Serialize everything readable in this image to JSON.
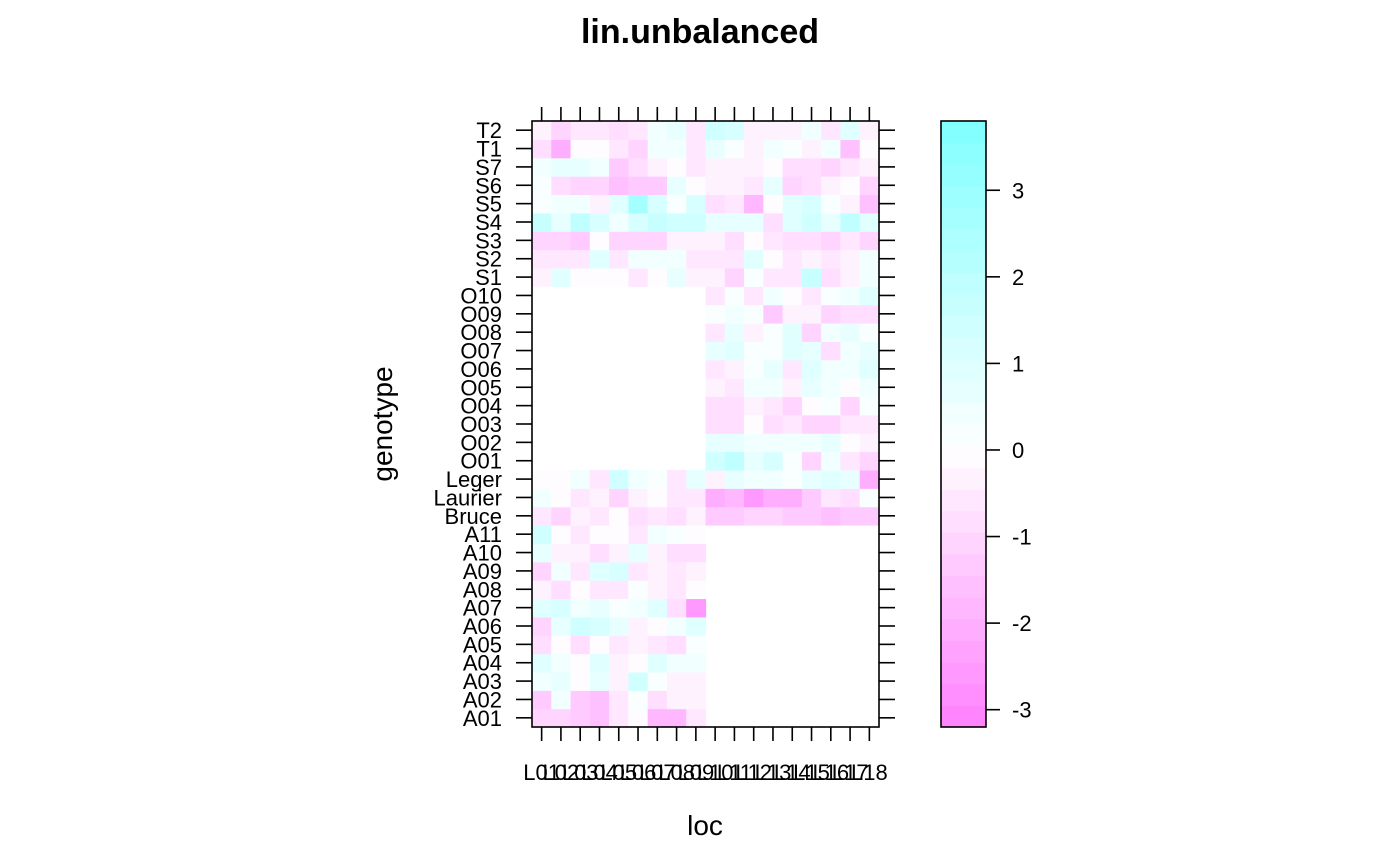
{
  "chart_data": {
    "type": "heatmap",
    "title": "lin.unbalanced",
    "xlabel": "loc",
    "ylabel": "genotype",
    "x_categories": [
      "L01",
      "L02",
      "L03",
      "L04",
      "L05",
      "L06",
      "L07",
      "L08",
      "L09",
      "L10",
      "L11",
      "L12",
      "L13",
      "L14",
      "L15",
      "L16",
      "L17",
      "L18"
    ],
    "y_categories": [
      "A01",
      "A02",
      "A03",
      "A04",
      "A05",
      "A06",
      "A07",
      "A08",
      "A09",
      "A10",
      "A11",
      "Bruce",
      "Laurier",
      "Leger",
      "O01",
      "O02",
      "O03",
      "O04",
      "O05",
      "O06",
      "O07",
      "O08",
      "O09",
      "O10",
      "S1",
      "S2",
      "S3",
      "S4",
      "S5",
      "S6",
      "S7",
      "T1",
      "T2"
    ],
    "colorbar": {
      "range": [
        -3.2,
        3.8
      ],
      "ticks": [
        -3,
        -2,
        -1,
        0,
        1,
        2,
        3
      ],
      "low_color": "#ff80ff",
      "mid_color": "#ffffff",
      "high_color": "#80ffff",
      "steps": 28
    },
    "values": [
      [
        -1.2,
        -1.0,
        -1.3,
        -1.6,
        -0.5,
        -0.1,
        -1.9,
        -1.9,
        -0.6,
        null,
        null,
        null,
        null,
        null,
        null,
        null,
        null,
        null
      ],
      [
        -1.3,
        0.4,
        -1.4,
        -1.7,
        -0.6,
        0.2,
        -0.9,
        -0.3,
        -0.3,
        null,
        null,
        null,
        null,
        null,
        null,
        null,
        null,
        null
      ],
      [
        0.5,
        0.6,
        -0.2,
        0.7,
        -0.3,
        1.4,
        0.2,
        -0.3,
        -0.3,
        null,
        null,
        null,
        null,
        null,
        null,
        null,
        null,
        null
      ],
      [
        0.8,
        0.3,
        -0.2,
        0.9,
        -0.4,
        -0.2,
        0.8,
        0.4,
        0.5,
        null,
        null,
        null,
        null,
        null,
        null,
        null,
        null,
        null
      ],
      [
        -0.9,
        -0.1,
        -0.8,
        -0.1,
        -0.5,
        -0.3,
        -0.6,
        -0.9,
        0.2,
        null,
        null,
        null,
        null,
        null,
        null,
        null,
        null,
        null
      ],
      [
        -1.0,
        0.6,
        1.3,
        1.2,
        0.6,
        -0.4,
        -0.1,
        0.3,
        1.0,
        null,
        null,
        null,
        null,
        null,
        null,
        null,
        null,
        null
      ],
      [
        0.8,
        1.2,
        0.3,
        0.7,
        0.1,
        0.5,
        0.8,
        -0.8,
        -2.6,
        null,
        null,
        null,
        null,
        null,
        null,
        null,
        null,
        null
      ],
      [
        -0.4,
        -0.9,
        -0.2,
        -0.7,
        -0.5,
        0.1,
        -0.4,
        -0.6,
        -0.1,
        null,
        null,
        null,
        null,
        null,
        null,
        null,
        null,
        null
      ],
      [
        -1.0,
        0.4,
        -0.5,
        0.8,
        1.1,
        -0.5,
        -0.4,
        -0.6,
        -0.3,
        null,
        null,
        null,
        null,
        null,
        null,
        null,
        null,
        null
      ],
      [
        0.6,
        -0.3,
        -0.4,
        -0.8,
        -0.4,
        0.6,
        -0.3,
        -0.9,
        -0.9,
        null,
        null,
        null,
        null,
        null,
        null,
        null,
        null,
        null
      ],
      [
        1.3,
        -0.2,
        -0.5,
        -0.2,
        -0.2,
        -0.7,
        0.4,
        0.1,
        -0.1,
        null,
        null,
        null,
        null,
        null,
        null,
        null,
        null,
        null
      ],
      [
        -0.5,
        -1.1,
        -0.3,
        -0.5,
        -0.2,
        -0.8,
        -0.6,
        -0.9,
        -0.4,
        -1.4,
        -1.4,
        -1.1,
        -1.1,
        -1.3,
        -1.3,
        -1.6,
        -1.3,
        -1.3
      ],
      [
        0.5,
        -0.1,
        -0.5,
        -0.4,
        -1.0,
        -0.3,
        -0.1,
        -0.7,
        -0.5,
        -2.0,
        -1.8,
        -2.6,
        -2.2,
        -2.2,
        -1.3,
        -0.6,
        -0.8,
        0.2
      ],
      [
        -0.2,
        -0.1,
        0.3,
        -0.7,
        1.5,
        0.4,
        0.1,
        -0.5,
        0.6,
        -0.4,
        0.6,
        0.4,
        0.3,
        0.2,
        0.6,
        0.8,
        0.6,
        -2.1
      ],
      [
        null,
        null,
        null,
        null,
        null,
        null,
        null,
        null,
        null,
        1.3,
        2.0,
        0.6,
        1.2,
        0.2,
        -1.1,
        0.5,
        -0.5,
        -1.0
      ],
      [
        null,
        null,
        null,
        null,
        null,
        null,
        null,
        null,
        null,
        0.6,
        0.6,
        0.4,
        0.5,
        0.4,
        0.3,
        0.7,
        -0.2,
        -0.4
      ],
      [
        null,
        null,
        null,
        null,
        null,
        null,
        null,
        null,
        null,
        -0.8,
        -0.8,
        -0.1,
        -0.9,
        -0.6,
        -1.1,
        -1.1,
        -0.5,
        -0.5
      ],
      [
        null,
        null,
        null,
        null,
        null,
        null,
        null,
        null,
        null,
        -0.8,
        -0.8,
        -0.3,
        -0.5,
        -1.0,
        -0.2,
        0.2,
        -1.2,
        0.2
      ],
      [
        null,
        null,
        null,
        null,
        null,
        null,
        null,
        null,
        null,
        -0.3,
        -0.6,
        0.3,
        0.4,
        -0.4,
        0.6,
        0.5,
        -0.2,
        0.4
      ],
      [
        null,
        null,
        null,
        null,
        null,
        null,
        null,
        null,
        null,
        -0.6,
        -0.4,
        0.2,
        0.6,
        -0.6,
        0.9,
        0.3,
        0.5,
        0.8
      ],
      [
        null,
        null,
        null,
        null,
        null,
        null,
        null,
        null,
        null,
        0.6,
        0.8,
        0.2,
        0.2,
        0.8,
        0.6,
        -0.8,
        0.3,
        0.6
      ],
      [
        null,
        null,
        null,
        null,
        null,
        null,
        null,
        null,
        null,
        -0.6,
        0.6,
        -0.4,
        0.2,
        1.0,
        -1.2,
        0.3,
        0.7,
        0.2
      ],
      [
        null,
        null,
        null,
        null,
        null,
        null,
        null,
        null,
        null,
        0.2,
        0.4,
        0.1,
        -1.3,
        -0.3,
        -0.4,
        -1.0,
        -0.8,
        -0.8
      ],
      [
        null,
        null,
        null,
        null,
        null,
        null,
        null,
        null,
        null,
        -0.6,
        0.2,
        -0.6,
        0.5,
        -0.2,
        -0.5,
        0.2,
        0.4,
        1.0
      ],
      [
        -0.4,
        0.9,
        -0.2,
        -0.2,
        -0.2,
        -0.6,
        -0.2,
        0.6,
        -0.3,
        -0.4,
        -1.2,
        0.2,
        -0.6,
        -0.6,
        1.6,
        -0.8,
        -0.4,
        0.3
      ],
      [
        -0.5,
        -0.5,
        -0.5,
        0.8,
        -0.7,
        0.3,
        0.4,
        0.4,
        -0.7,
        -0.7,
        -0.5,
        0.9,
        -0.1,
        -0.6,
        -0.3,
        -0.7,
        -0.3,
        0.3
      ],
      [
        -1.2,
        -1.2,
        -1.4,
        -0.2,
        -1.2,
        -1.0,
        -1.0,
        -0.4,
        -0.4,
        -0.4,
        -0.9,
        -0.2,
        -0.6,
        -0.8,
        -0.9,
        -1.1,
        -0.7,
        -1.2
      ],
      [
        1.6,
        0.7,
        1.8,
        1.1,
        0.5,
        1.1,
        1.6,
        1.5,
        1.5,
        0.6,
        0.6,
        0.7,
        -0.9,
        1.0,
        1.3,
        0.6,
        1.8,
        0.9
      ],
      [
        0.2,
        0.5,
        0.3,
        -0.4,
        0.8,
        2.7,
        1.1,
        0.2,
        1.1,
        -0.8,
        -0.5,
        -1.9,
        -0.2,
        0.9,
        1.2,
        0.2,
        -0.4,
        -1.5
      ],
      [
        0.2,
        -0.8,
        -1.1,
        -1.0,
        -1.7,
        -1.3,
        -1.3,
        0.6,
        -0.2,
        -0.4,
        -0.3,
        -0.7,
        0.7,
        -1.0,
        -0.8,
        -0.4,
        -0.2,
        -1.0
      ],
      [
        0.3,
        0.6,
        0.6,
        0.4,
        -1.4,
        -0.9,
        -0.3,
        -0.2,
        -0.7,
        -0.3,
        -0.4,
        -0.4,
        -0.2,
        -0.8,
        -0.8,
        -1.0,
        -0.5,
        -0.3
      ],
      [
        -0.9,
        -2.2,
        -0.2,
        -0.2,
        -0.6,
        -1.0,
        0.4,
        0.3,
        -0.6,
        0.6,
        0.2,
        -0.3,
        0.4,
        0.2,
        -0.4,
        0.3,
        -1.6,
        -0.2
      ],
      [
        -0.3,
        -1.2,
        -0.5,
        -0.5,
        -0.8,
        -0.7,
        0.3,
        0.6,
        -0.5,
        1.3,
        1.1,
        -0.3,
        -0.3,
        -0.3,
        0.4,
        -0.7,
        1.0,
        -0.3
      ]
    ]
  }
}
